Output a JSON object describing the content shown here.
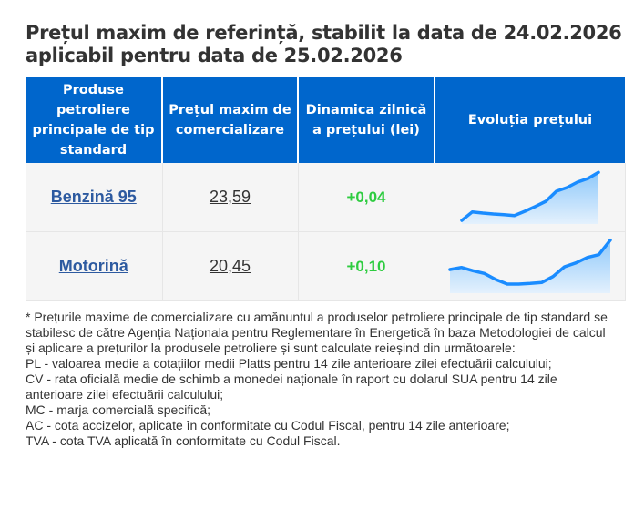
{
  "title": "Prețul maxim de referință, stabilit la data de 24.02.2026 aplicabil pentru data de 25.02.2026",
  "table": {
    "headers": [
      "Produse petroliere principale de tip standard",
      "Prețul maxim de comercializare",
      "Dinamica zilnică a prețului (lei)",
      "Evoluția prețului"
    ],
    "rows": [
      {
        "product": "Benzină 95",
        "price": "23,59",
        "change": "+0,04",
        "trend": [
          12,
          40,
          36,
          33,
          31,
          28,
          42,
          58,
          75,
          108,
          120,
          138,
          150,
          170
        ]
      },
      {
        "product": "Motorină",
        "price": "20,45",
        "change": "+0,10",
        "trend": [
          78,
          85,
          74,
          65,
          45,
          30,
          30,
          32,
          35,
          55,
          87,
          100,
          118,
          127,
          175
        ]
      }
    ]
  },
  "notes": [
    "* Prețurile maxime de comercializare cu amănuntul a produselor petroliere principale de tip standard se stabilesc de către Agenția Naționala pentru Reglementare în Energetică în baza Metodologiei de calcul și aplicare a prețurilor la produsele petroliere și sunt calculate reieșind din următoarele:",
    "PL - valoarea medie a cotațiilor medii Platts pentru 14 zile anterioare zilei efectuării calculului;",
    "CV - rata oficială medie de schimb a monedei naționale în raport cu dolarul SUA pentru 14 zile anterioare zilei efectuării calculului;",
    "MC - marja comercială specifică;",
    "AC - cota accizelor, aplicate în conformitate cu Codul Fiscal, pentru 14 zile anterioare;",
    "TVA - cota TVA aplicată în conformitate cu Codul Fiscal."
  ],
  "colors": {
    "header": "#0066cc",
    "positive": "#2ecc40",
    "line": "#1a8cff",
    "link": "#2d5aa0"
  }
}
